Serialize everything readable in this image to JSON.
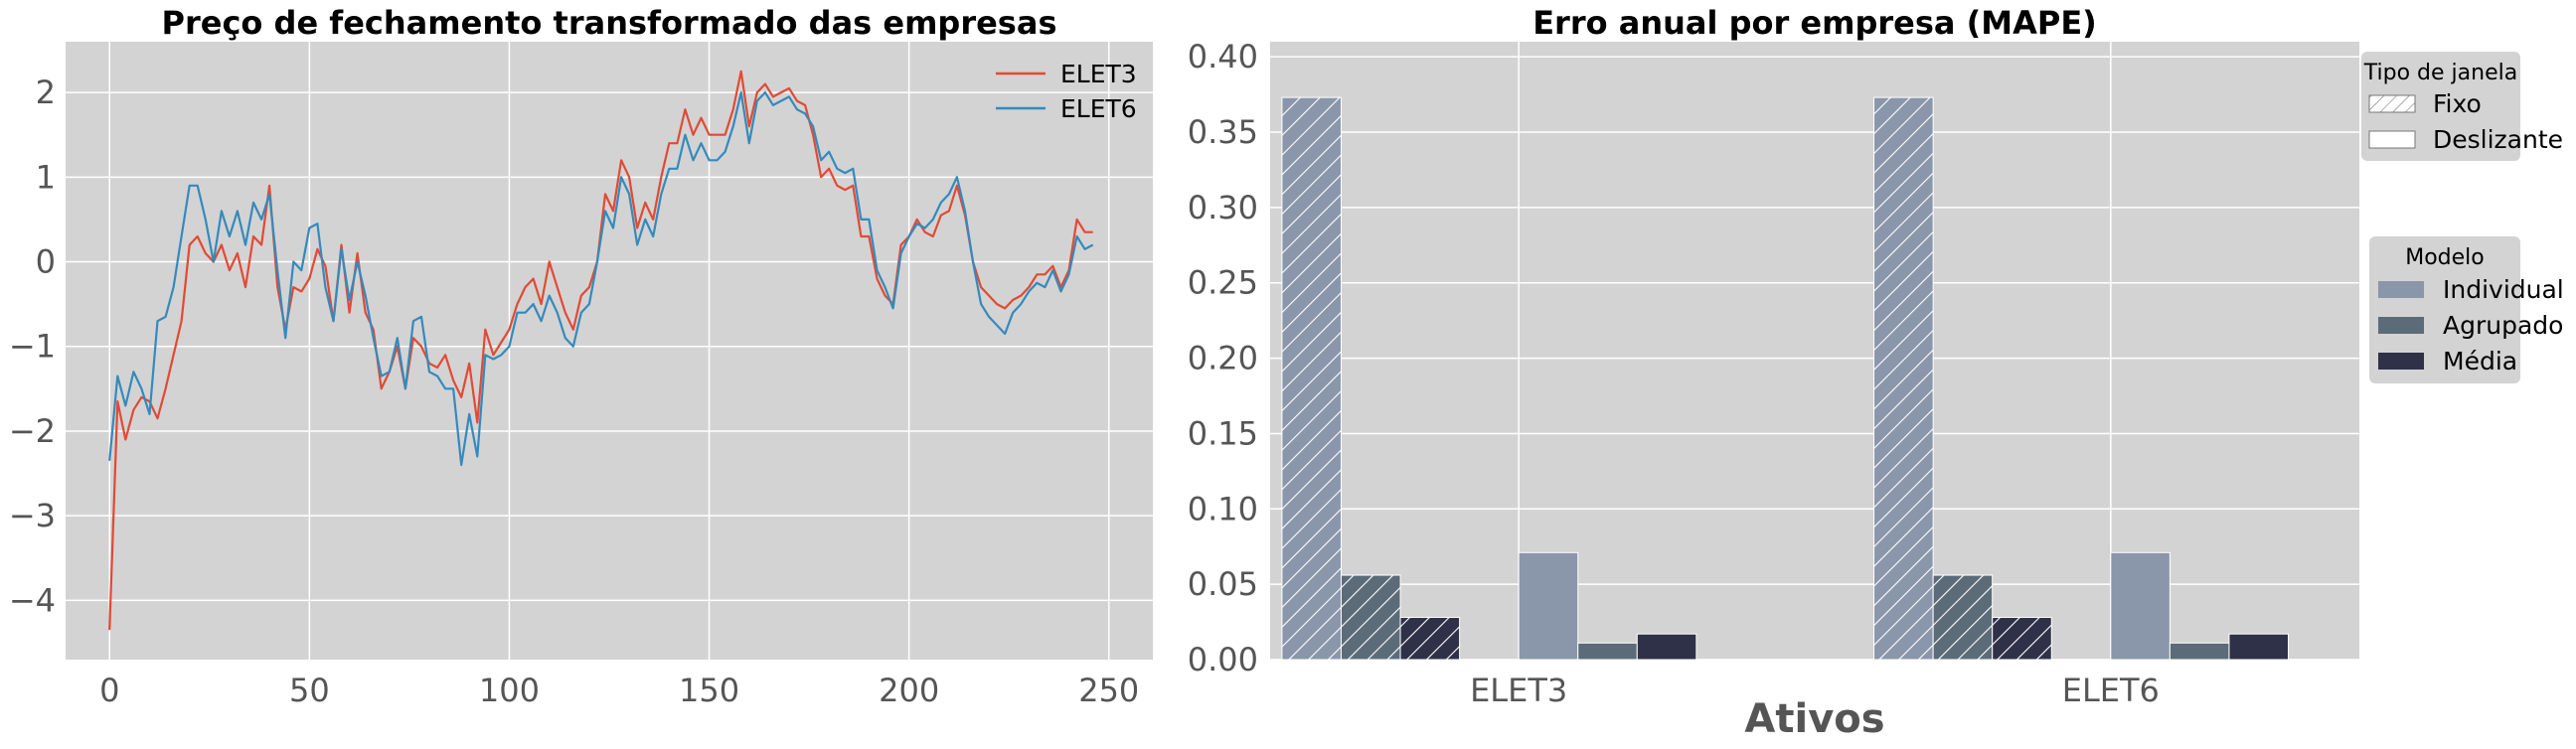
{
  "colors": {
    "plot_bg": "#d3d3d3",
    "grid": "#ffffff",
    "elet3": "#e24a33",
    "elet6": "#348abd",
    "individual": "#8a96aa",
    "agrupado": "#5c6b78",
    "media": "#2e3148"
  },
  "chart_data": [
    {
      "type": "line",
      "title": "Preço de fechamento transformado das empresas",
      "xlim": [
        -11,
        261
      ],
      "ylim": [
        -4.7,
        2.6
      ],
      "xticks": [
        0,
        50,
        100,
        150,
        200,
        250
      ],
      "xtick_labels": [
        "0",
        "50",
        "100",
        "150",
        "200",
        "250"
      ],
      "yticks": [
        2,
        1,
        0,
        -1,
        -2,
        -3,
        -4
      ],
      "ytick_labels": [
        "2",
        "1",
        "0",
        "−1",
        "−2",
        "−3",
        "−4"
      ],
      "grid": true,
      "legend_position": "top-right",
      "series": [
        {
          "name": "ELET3",
          "points": [
            [
              0,
              -4.35
            ],
            [
              2,
              -1.65
            ],
            [
              4,
              -2.1
            ],
            [
              6,
              -1.75
            ],
            [
              8,
              -1.6
            ],
            [
              10,
              -1.65
            ],
            [
              12,
              -1.85
            ],
            [
              14,
              -1.5
            ],
            [
              16,
              -1.1
            ],
            [
              18,
              -0.7
            ],
            [
              20,
              0.2
            ],
            [
              22,
              0.3
            ],
            [
              24,
              0.1
            ],
            [
              26,
              0.0
            ],
            [
              28,
              0.2
            ],
            [
              30,
              -0.1
            ],
            [
              32,
              0.1
            ],
            [
              34,
              -0.3
            ],
            [
              36,
              0.3
            ],
            [
              38,
              0.2
            ],
            [
              40,
              0.9
            ],
            [
              42,
              -0.3
            ],
            [
              44,
              -0.8
            ],
            [
              46,
              -0.3
            ],
            [
              48,
              -0.35
            ],
            [
              50,
              -0.2
            ],
            [
              52,
              0.15
            ],
            [
              54,
              -0.05
            ],
            [
              56,
              -0.7
            ],
            [
              58,
              0.2
            ],
            [
              60,
              -0.6
            ],
            [
              62,
              0.1
            ],
            [
              64,
              -0.6
            ],
            [
              66,
              -0.8
            ],
            [
              68,
              -1.5
            ],
            [
              70,
              -1.3
            ],
            [
              72,
              -1.0
            ],
            [
              74,
              -1.5
            ],
            [
              76,
              -0.9
            ],
            [
              78,
              -1.0
            ],
            [
              80,
              -1.2
            ],
            [
              82,
              -1.25
            ],
            [
              84,
              -1.1
            ],
            [
              86,
              -1.4
            ],
            [
              88,
              -1.6
            ],
            [
              90,
              -1.2
            ],
            [
              92,
              -1.9
            ],
            [
              94,
              -0.8
            ],
            [
              96,
              -1.1
            ],
            [
              98,
              -0.95
            ],
            [
              100,
              -0.8
            ],
            [
              102,
              -0.5
            ],
            [
              104,
              -0.3
            ],
            [
              106,
              -0.2
            ],
            [
              108,
              -0.5
            ],
            [
              110,
              0.0
            ],
            [
              112,
              -0.3
            ],
            [
              114,
              -0.6
            ],
            [
              116,
              -0.8
            ],
            [
              118,
              -0.4
            ],
            [
              120,
              -0.3
            ],
            [
              122,
              0.0
            ],
            [
              124,
              0.8
            ],
            [
              126,
              0.6
            ],
            [
              128,
              1.2
            ],
            [
              130,
              1.0
            ],
            [
              132,
              0.4
            ],
            [
              134,
              0.7
            ],
            [
              136,
              0.5
            ],
            [
              138,
              1.0
            ],
            [
              140,
              1.4
            ],
            [
              142,
              1.4
            ],
            [
              144,
              1.8
            ],
            [
              146,
              1.5
            ],
            [
              148,
              1.7
            ],
            [
              150,
              1.5
            ],
            [
              152,
              1.5
            ],
            [
              154,
              1.5
            ],
            [
              156,
              1.8
            ],
            [
              158,
              2.25
            ],
            [
              160,
              1.6
            ],
            [
              162,
              2.0
            ],
            [
              164,
              2.1
            ],
            [
              166,
              1.95
            ],
            [
              168,
              2.0
            ],
            [
              170,
              2.05
            ],
            [
              172,
              1.9
            ],
            [
              174,
              1.85
            ],
            [
              176,
              1.5
            ],
            [
              178,
              1.0
            ],
            [
              180,
              1.1
            ],
            [
              182,
              0.9
            ],
            [
              184,
              0.85
            ],
            [
              186,
              0.9
            ],
            [
              188,
              0.3
            ],
            [
              190,
              0.3
            ],
            [
              192,
              -0.2
            ],
            [
              194,
              -0.4
            ],
            [
              196,
              -0.5
            ],
            [
              198,
              0.2
            ],
            [
              200,
              0.3
            ],
            [
              202,
              0.5
            ],
            [
              204,
              0.35
            ],
            [
              206,
              0.3
            ],
            [
              208,
              0.55
            ],
            [
              210,
              0.6
            ],
            [
              212,
              0.9
            ],
            [
              214,
              0.55
            ],
            [
              216,
              0.0
            ],
            [
              218,
              -0.3
            ],
            [
              220,
              -0.4
            ],
            [
              222,
              -0.5
            ],
            [
              224,
              -0.55
            ],
            [
              226,
              -0.45
            ],
            [
              228,
              -0.4
            ],
            [
              230,
              -0.3
            ],
            [
              232,
              -0.15
            ],
            [
              234,
              -0.15
            ],
            [
              236,
              -0.05
            ],
            [
              238,
              -0.3
            ],
            [
              240,
              -0.1
            ],
            [
              242,
              0.5
            ],
            [
              244,
              0.35
            ],
            [
              246,
              0.35
            ]
          ]
        },
        {
          "name": "ELET6",
          "points": [
            [
              0,
              -2.35
            ],
            [
              2,
              -1.35
            ],
            [
              4,
              -1.7
            ],
            [
              6,
              -1.3
            ],
            [
              8,
              -1.5
            ],
            [
              10,
              -1.8
            ],
            [
              12,
              -0.7
            ],
            [
              14,
              -0.65
            ],
            [
              16,
              -0.3
            ],
            [
              18,
              0.3
            ],
            [
              20,
              0.9
            ],
            [
              22,
              0.9
            ],
            [
              24,
              0.5
            ],
            [
              26,
              0.0
            ],
            [
              28,
              0.6
            ],
            [
              30,
              0.3
            ],
            [
              32,
              0.6
            ],
            [
              34,
              0.2
            ],
            [
              36,
              0.7
            ],
            [
              38,
              0.5
            ],
            [
              40,
              0.8
            ],
            [
              42,
              -0.1
            ],
            [
              44,
              -0.9
            ],
            [
              46,
              0.0
            ],
            [
              48,
              -0.1
            ],
            [
              50,
              0.4
            ],
            [
              52,
              0.45
            ],
            [
              54,
              -0.3
            ],
            [
              56,
              -0.7
            ],
            [
              58,
              0.15
            ],
            [
              60,
              -0.45
            ],
            [
              62,
              0.0
            ],
            [
              64,
              -0.4
            ],
            [
              66,
              -0.9
            ],
            [
              68,
              -1.35
            ],
            [
              70,
              -1.3
            ],
            [
              72,
              -0.9
            ],
            [
              74,
              -1.5
            ],
            [
              76,
              -0.7
            ],
            [
              78,
              -0.65
            ],
            [
              80,
              -1.3
            ],
            [
              82,
              -1.35
            ],
            [
              84,
              -1.5
            ],
            [
              86,
              -1.5
            ],
            [
              88,
              -2.4
            ],
            [
              90,
              -1.8
            ],
            [
              92,
              -2.3
            ],
            [
              94,
              -1.1
            ],
            [
              96,
              -1.15
            ],
            [
              98,
              -1.1
            ],
            [
              100,
              -1.0
            ],
            [
              102,
              -0.6
            ],
            [
              104,
              -0.6
            ],
            [
              106,
              -0.5
            ],
            [
              108,
              -0.7
            ],
            [
              110,
              -0.4
            ],
            [
              112,
              -0.6
            ],
            [
              114,
              -0.9
            ],
            [
              116,
              -1.0
            ],
            [
              118,
              -0.6
            ],
            [
              120,
              -0.5
            ],
            [
              122,
              0.0
            ],
            [
              124,
              0.6
            ],
            [
              126,
              0.4
            ],
            [
              128,
              1.0
            ],
            [
              130,
              0.8
            ],
            [
              132,
              0.2
            ],
            [
              134,
              0.5
            ],
            [
              136,
              0.3
            ],
            [
              138,
              0.8
            ],
            [
              140,
              1.1
            ],
            [
              142,
              1.1
            ],
            [
              144,
              1.5
            ],
            [
              146,
              1.2
            ],
            [
              148,
              1.4
            ],
            [
              150,
              1.2
            ],
            [
              152,
              1.2
            ],
            [
              154,
              1.3
            ],
            [
              156,
              1.6
            ],
            [
              158,
              2.0
            ],
            [
              160,
              1.4
            ],
            [
              162,
              1.9
            ],
            [
              164,
              2.0
            ],
            [
              166,
              1.85
            ],
            [
              168,
              1.9
            ],
            [
              170,
              1.95
            ],
            [
              172,
              1.8
            ],
            [
              174,
              1.75
            ],
            [
              176,
              1.6
            ],
            [
              178,
              1.2
            ],
            [
              180,
              1.3
            ],
            [
              182,
              1.1
            ],
            [
              184,
              1.05
            ],
            [
              186,
              1.1
            ],
            [
              188,
              0.5
            ],
            [
              190,
              0.5
            ],
            [
              192,
              -0.1
            ],
            [
              194,
              -0.3
            ],
            [
              196,
              -0.55
            ],
            [
              198,
              0.1
            ],
            [
              200,
              0.3
            ],
            [
              202,
              0.45
            ],
            [
              204,
              0.4
            ],
            [
              206,
              0.5
            ],
            [
              208,
              0.7
            ],
            [
              210,
              0.8
            ],
            [
              212,
              1.0
            ],
            [
              214,
              0.6
            ],
            [
              216,
              0.0
            ],
            [
              218,
              -0.5
            ],
            [
              220,
              -0.65
            ],
            [
              222,
              -0.75
            ],
            [
              224,
              -0.85
            ],
            [
              226,
              -0.6
            ],
            [
              228,
              -0.5
            ],
            [
              230,
              -0.35
            ],
            [
              232,
              -0.25
            ],
            [
              234,
              -0.3
            ],
            [
              236,
              -0.1
            ],
            [
              238,
              -0.35
            ],
            [
              240,
              -0.15
            ],
            [
              242,
              0.3
            ],
            [
              244,
              0.15
            ],
            [
              246,
              0.2
            ]
          ]
        }
      ]
    },
    {
      "type": "bar",
      "title": "Erro anual por empresa (MAPE)",
      "xlabel": "Ativos",
      "categories": [
        "ELET3",
        "ELET6"
      ],
      "ylim": [
        0,
        0.41
      ],
      "yticks": [
        0.0,
        0.05,
        0.1,
        0.15,
        0.2,
        0.25,
        0.3,
        0.35,
        0.4
      ],
      "ytick_labels": [
        "0.00",
        "0.05",
        "0.10",
        "0.15",
        "0.20",
        "0.25",
        "0.30",
        "0.35",
        "0.40"
      ],
      "grid": true,
      "legend_position": "right outside",
      "legend_window": {
        "title": "Tipo de janela",
        "entries": [
          "Fixo",
          "Deslizante"
        ]
      },
      "legend_model": {
        "title": "Modelo",
        "entries": [
          "Individual",
          "Agrupado",
          "Média"
        ]
      },
      "series": [
        {
          "name": "Individual",
          "window": "Fixo",
          "values": [
            0.373,
            0.373
          ]
        },
        {
          "name": "Agrupado",
          "window": "Fixo",
          "values": [
            0.056,
            0.056
          ]
        },
        {
          "name": "Média",
          "window": "Fixo",
          "values": [
            0.028,
            0.028
          ]
        },
        {
          "name": "Individual",
          "window": "Deslizante",
          "values": [
            0.071,
            0.071
          ]
        },
        {
          "name": "Agrupado",
          "window": "Deslizante",
          "values": [
            0.011,
            0.011
          ]
        },
        {
          "name": "Média",
          "window": "Deslizante",
          "values": [
            0.017,
            0.017
          ]
        }
      ]
    }
  ]
}
